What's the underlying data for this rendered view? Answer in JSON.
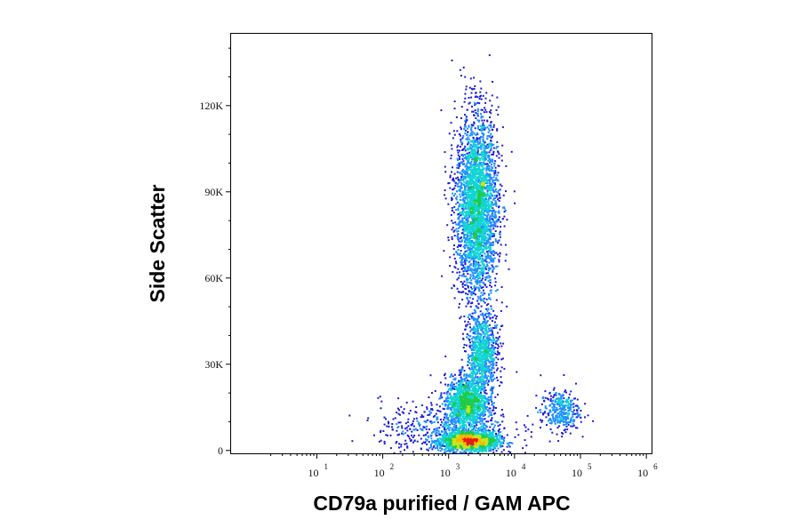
{
  "chart_data": {
    "type": "scatter",
    "subtype": "flow-cytometry-density-dot-plot",
    "xlabel": "CD79a purified / GAM APC",
    "ylabel": "Side Scatter",
    "x_scale": "log",
    "xlim": [
      0.5,
      1200000
    ],
    "ylim": [
      -1000,
      145000
    ],
    "x_ticks": [
      {
        "value": 10,
        "base": "10",
        "exp": "1"
      },
      {
        "value": 100,
        "base": "10",
        "exp": "2"
      },
      {
        "value": 1000,
        "base": "10",
        "exp": "3"
      },
      {
        "value": 10000,
        "base": "10",
        "exp": "4"
      },
      {
        "value": 100000,
        "base": "10",
        "exp": "5"
      },
      {
        "value": 1000000,
        "base": "10",
        "exp": "6"
      }
    ],
    "y_ticks": [
      {
        "value": 0,
        "label": "0"
      },
      {
        "value": 30000,
        "label": "30K"
      },
      {
        "value": 60000,
        "label": "60K"
      },
      {
        "value": 90000,
        "label": "90K"
      },
      {
        "value": 120000,
        "label": "120K"
      }
    ],
    "grid": false,
    "legend": "none",
    "colormap": [
      "#1b1bd6",
      "#1e8fff",
      "#12d4d4",
      "#1ecb4a",
      "#c8e619",
      "#ffb400",
      "#e81a1a"
    ],
    "populations": [
      {
        "name": "",
        "center_x": 2000,
        "center_y": 3500,
        "spread_log10": 0.22,
        "spread_y": 1800,
        "count": 1800
      },
      {
        "name": "",
        "center_x": 1800,
        "center_y": 17000,
        "spread_log10": 0.16,
        "spread_y": 4500,
        "count": 1300
      },
      {
        "name": "",
        "center_x": 3200,
        "center_y": 34000,
        "spread_log10": 0.12,
        "spread_y": 7000,
        "count": 900
      },
      {
        "name": "",
        "center_x": 2600,
        "center_y": 85000,
        "spread_log10": 0.16,
        "spread_y": 16000,
        "count": 3200
      },
      {
        "name": "",
        "center_x": 48000,
        "center_y": 14000,
        "spread_log10": 0.15,
        "spread_y": 3500,
        "count": 350
      },
      {
        "name": "",
        "center_x": 900,
        "center_y": 8000,
        "spread_log10": 0.5,
        "spread_y": 5000,
        "count": 500
      }
    ]
  }
}
